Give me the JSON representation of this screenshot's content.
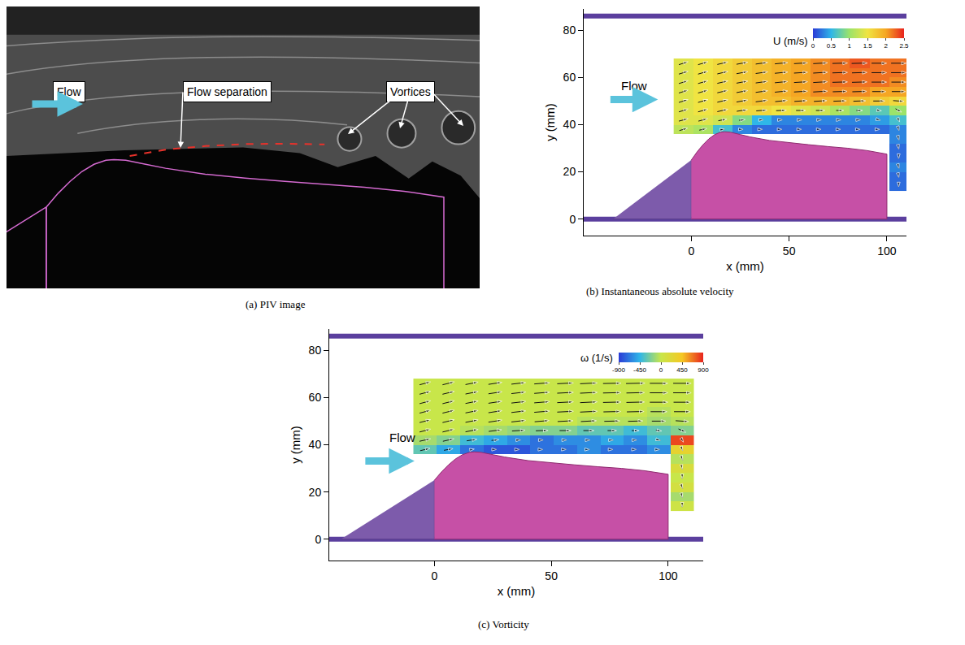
{
  "chart_data": [
    {
      "type": "image",
      "title": "(a) PIV image",
      "xlim": [
        -10,
        109
      ],
      "ylim": [
        4.5,
        75.6
      ],
      "tick_labels": false,
      "labels": {
        "flow": "Flow",
        "separation": "Flow separation",
        "vortices": "Vortices"
      },
      "separation_line": {
        "x": [
          21,
          30,
          40,
          50,
          60,
          70
        ],
        "y": [
          37.9,
          39.5,
          40.4,
          40.9,
          41,
          40.8
        ]
      }
    },
    {
      "type": "heatmap",
      "title": "(b) Instantaneous absolute velocity",
      "x_label": "x (mm)",
      "y_label": "y (mm)",
      "xlim": [
        -55,
        110
      ],
      "ylim": [
        -7,
        89
      ],
      "xticks": [
        0,
        50,
        100
      ],
      "yticks": [
        0,
        20,
        40,
        60,
        80
      ],
      "flow_label": "Flow",
      "colorbar_title": "U (m/s)",
      "colorbar_range": [
        0,
        2.5
      ],
      "colorbar_ticks": [
        0,
        0.5,
        1,
        1.5,
        2,
        2.5
      ],
      "z": [
        [
          null,
          null,
          null,
          null,
          null,
          null,
          null,
          null,
          null,
          null,
          null,
          0.2
        ],
        [
          null,
          null,
          null,
          null,
          null,
          null,
          null,
          null,
          null,
          null,
          null,
          0.2
        ],
        [
          null,
          null,
          null,
          null,
          null,
          null,
          null,
          null,
          null,
          null,
          null,
          0.3
        ],
        [
          null,
          null,
          null,
          null,
          null,
          null,
          null,
          null,
          null,
          null,
          null,
          0.2
        ],
        [
          null,
          null,
          null,
          null,
          null,
          null,
          null,
          null,
          null,
          null,
          null,
          0.2
        ],
        [
          null,
          null,
          null,
          null,
          null,
          null,
          null,
          null,
          null,
          null,
          null,
          0.3
        ],
        [
          1.2,
          1.1,
          0.6,
          0.3,
          0.2,
          0.2,
          0.2,
          0.2,
          0.2,
          0.2,
          0.2,
          0.3
        ],
        [
          1.4,
          1.4,
          1.3,
          0.9,
          0.5,
          0.3,
          0.3,
          0.3,
          0.3,
          0.3,
          0.4,
          0.6
        ],
        [
          1.4,
          1.5,
          1.6,
          1.6,
          1.6,
          1.5,
          1.4,
          1.3,
          1.1,
          0.9,
          0.7,
          1.0
        ],
        [
          1.4,
          1.5,
          1.6,
          1.7,
          1.8,
          1.8,
          1.9,
          1.9,
          1.9,
          1.8,
          1.7,
          1.6
        ],
        [
          1.4,
          1.5,
          1.6,
          1.7,
          1.8,
          1.9,
          2.0,
          2.1,
          2.1,
          2.1,
          2.0,
          2.0
        ],
        [
          1.4,
          1.5,
          1.6,
          1.7,
          1.8,
          1.9,
          2.0,
          2.1,
          2.2,
          2.2,
          2.2,
          2.1
        ],
        [
          1.4,
          1.5,
          1.6,
          1.7,
          1.8,
          1.9,
          2.0,
          2.1,
          2.2,
          2.2,
          2.2,
          2.2
        ],
        [
          1.4,
          1.5,
          1.6,
          1.7,
          1.8,
          1.9,
          2.0,
          2.1,
          2.2,
          2.3,
          2.2,
          2.2
        ]
      ]
    },
    {
      "type": "heatmap",
      "title": "(c) Vorticity",
      "x_label": "x (mm)",
      "y_label": "y (mm)",
      "xlim": [
        -45,
        115
      ],
      "ylim": [
        -9,
        89
      ],
      "xticks": [
        0,
        50,
        100
      ],
      "yticks": [
        0,
        20,
        40,
        60,
        80
      ],
      "flow_label": "Flow",
      "colorbar_title": "ω (1/s)",
      "colorbar_range": [
        -900,
        900
      ],
      "colorbar_ticks": [
        -900,
        -450,
        0,
        450,
        900
      ],
      "z": [
        [
          null,
          null,
          null,
          null,
          null,
          null,
          null,
          null,
          null,
          null,
          null,
          50
        ],
        [
          null,
          null,
          null,
          null,
          null,
          null,
          null,
          null,
          null,
          null,
          null,
          -100
        ],
        [
          null,
          null,
          null,
          null,
          null,
          null,
          null,
          null,
          null,
          null,
          null,
          100
        ],
        [
          null,
          null,
          null,
          null,
          null,
          null,
          null,
          null,
          null,
          null,
          null,
          0
        ],
        [
          null,
          null,
          null,
          null,
          null,
          null,
          null,
          null,
          null,
          null,
          null,
          150
        ],
        [
          null,
          null,
          null,
          null,
          null,
          null,
          null,
          null,
          null,
          null,
          null,
          -50
        ],
        [
          -300,
          -500,
          -700,
          -800,
          -800,
          -700,
          -700,
          -600,
          -700,
          -700,
          -600,
          300
        ],
        [
          -100,
          -200,
          -400,
          -500,
          -600,
          -700,
          -600,
          -600,
          -500,
          -600,
          -400,
          800
        ],
        [
          0,
          0,
          -50,
          -100,
          -150,
          -200,
          -200,
          -300,
          -300,
          -400,
          -300,
          -200
        ],
        [
          0,
          0,
          0,
          0,
          0,
          0,
          0,
          -50,
          -50,
          -50,
          -100,
          -50
        ],
        [
          0,
          0,
          0,
          0,
          0,
          0,
          0,
          0,
          0,
          0,
          -50,
          0
        ],
        [
          0,
          0,
          0,
          0,
          0,
          0,
          0,
          0,
          0,
          0,
          0,
          0
        ],
        [
          0,
          0,
          0,
          0,
          0,
          0,
          0,
          0,
          0,
          0,
          0,
          0
        ],
        [
          0,
          0,
          0,
          0,
          0,
          0,
          0,
          0,
          0,
          0,
          0,
          0
        ]
      ]
    }
  ],
  "geometry": {
    "walls_y": [
      0,
      86
    ],
    "wedge": {
      "x": [
        -40,
        0,
        0
      ],
      "y": [
        0,
        0,
        25
      ]
    },
    "body": {
      "x": [
        0,
        3,
        6,
        9,
        12,
        15,
        17,
        20,
        25,
        30,
        40,
        50,
        60,
        70,
        80,
        90,
        100,
        100,
        0
      ],
      "y": [
        25,
        28.5,
        31.5,
        34,
        35.8,
        36.8,
        37,
        36.8,
        35.8,
        34.8,
        33.3,
        32.3,
        31.5,
        30.7,
        30,
        29,
        27.5,
        0,
        0
      ]
    }
  },
  "field": {
    "x": [
      -4,
      6,
      16,
      26,
      36,
      46,
      56,
      66,
      76,
      86,
      96,
      106
    ],
    "y": [
      14,
      18,
      22,
      26,
      30,
      34,
      38,
      42,
      46,
      50,
      54,
      58,
      62,
      66
    ],
    "u": [
      [
        null,
        null,
        null,
        null,
        null,
        null,
        null,
        null,
        null,
        null,
        null,
        0
      ],
      [
        null,
        null,
        null,
        null,
        null,
        null,
        null,
        null,
        null,
        null,
        null,
        0.05
      ],
      [
        null,
        null,
        null,
        null,
        null,
        null,
        null,
        null,
        null,
        null,
        null,
        0.1
      ],
      [
        null,
        null,
        null,
        null,
        null,
        null,
        null,
        null,
        null,
        null,
        null,
        0
      ],
      [
        null,
        null,
        null,
        null,
        null,
        null,
        null,
        null,
        null,
        null,
        null,
        0.05
      ],
      [
        null,
        null,
        null,
        null,
        null,
        null,
        null,
        null,
        null,
        null,
        null,
        0.1
      ],
      [
        1.2,
        1.1,
        0.6,
        0.3,
        0.2,
        0.2,
        0.2,
        0.2,
        0.2,
        0.2,
        0.2,
        0.1
      ],
      [
        1.35,
        1.35,
        1.25,
        0.9,
        0.5,
        0.3,
        0.3,
        0.3,
        0.3,
        0.3,
        0.4,
        0.3
      ],
      [
        1.35,
        1.45,
        1.55,
        1.58,
        1.6,
        1.5,
        1.4,
        1.3,
        1.1,
        0.9,
        0.7,
        0.9
      ],
      [
        1.35,
        1.45,
        1.55,
        1.65,
        1.75,
        1.78,
        1.88,
        1.9,
        1.9,
        1.8,
        1.7,
        1.6
      ],
      [
        1.35,
        1.45,
        1.55,
        1.65,
        1.75,
        1.88,
        1.98,
        2.1,
        2.1,
        2.1,
        2.0,
        2.0
      ],
      [
        1.35,
        1.45,
        1.55,
        1.65,
        1.75,
        1.88,
        1.98,
        2.1,
        2.2,
        2.2,
        2.2,
        2.1
      ],
      [
        1.35,
        1.45,
        1.55,
        1.65,
        1.75,
        1.88,
        1.98,
        2.1,
        2.2,
        2.2,
        2.2,
        2.2
      ],
      [
        1.35,
        1.45,
        1.55,
        1.65,
        1.75,
        1.88,
        1.98,
        2.1,
        2.2,
        2.3,
        2.2,
        2.2
      ]
    ],
    "v": [
      [
        null,
        null,
        null,
        null,
        null,
        null,
        null,
        null,
        null,
        null,
        null,
        -0.2
      ],
      [
        null,
        null,
        null,
        null,
        null,
        null,
        null,
        null,
        null,
        null,
        null,
        -0.2
      ],
      [
        null,
        null,
        null,
        null,
        null,
        null,
        null,
        null,
        null,
        null,
        null,
        -0.3
      ],
      [
        null,
        null,
        null,
        null,
        null,
        null,
        null,
        null,
        null,
        null,
        null,
        -0.2
      ],
      [
        null,
        null,
        null,
        null,
        null,
        null,
        null,
        null,
        null,
        null,
        null,
        -0.2
      ],
      [
        null,
        null,
        null,
        null,
        null,
        null,
        null,
        null,
        null,
        null,
        null,
        -0.3
      ],
      [
        0.3,
        0.2,
        0.1,
        0,
        0,
        0,
        0,
        0,
        0,
        0,
        0,
        -0.3
      ],
      [
        0.3,
        0.3,
        0.2,
        0.1,
        0,
        0,
        0,
        0,
        0,
        0,
        -0.1,
        -0.5
      ],
      [
        0.35,
        0.35,
        0.3,
        0.2,
        0.1,
        0.05,
        0,
        0,
        0,
        0,
        -0.1,
        -0.4
      ],
      [
        0.35,
        0.35,
        0.3,
        0.25,
        0.2,
        0.15,
        0.1,
        0.1,
        0.05,
        0.05,
        0,
        -0.1
      ],
      [
        0.35,
        0.35,
        0.3,
        0.25,
        0.2,
        0.15,
        0.1,
        0.1,
        0.05,
        0.05,
        0,
        0
      ],
      [
        0.35,
        0.35,
        0.3,
        0.25,
        0.2,
        0.15,
        0.1,
        0.1,
        0.05,
        0.05,
        0,
        0
      ],
      [
        0.35,
        0.35,
        0.3,
        0.25,
        0.2,
        0.15,
        0.1,
        0.1,
        0.05,
        0.05,
        0,
        0
      ],
      [
        0.35,
        0.35,
        0.3,
        0.25,
        0.2,
        0.15,
        0.1,
        0.1,
        0.05,
        0.05,
        0,
        0
      ]
    ]
  }
}
